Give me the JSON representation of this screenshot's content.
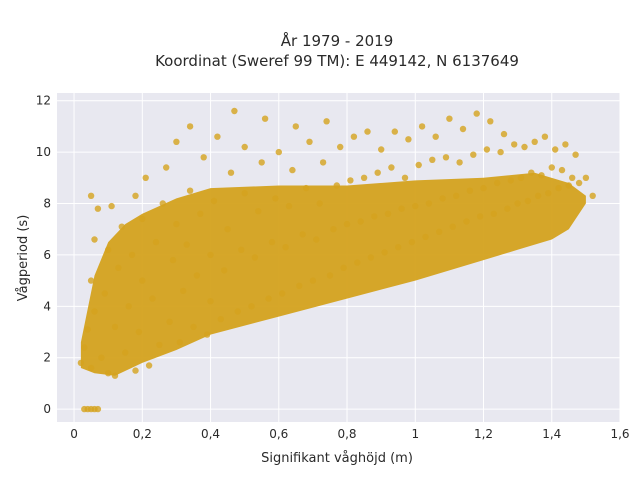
{
  "chart_data": {
    "type": "scatter",
    "title_line1": "År 1979 - 2019",
    "title_line2": "Koordinat (Sweref 99 TM): E 449142, N 6137649",
    "xlabel": "Signifikant våghöjd (m)",
    "ylabel": "Vågperiod (s)",
    "xlim": [
      -0.05,
      1.6
    ],
    "ylim": [
      -0.5,
      12.3
    ],
    "xticks": [
      0,
      0.2,
      0.4,
      0.6,
      0.8,
      1,
      1.2,
      1.4,
      1.6
    ],
    "xtick_labels": [
      "0",
      "0,2",
      "0,4",
      "0,6",
      "0,8",
      "1",
      "1,2",
      "1,4",
      "1,6"
    ],
    "yticks": [
      0,
      2,
      4,
      6,
      8,
      10,
      12
    ],
    "ytick_labels": [
      "0",
      "2",
      "4",
      "6",
      "8",
      "10",
      "12"
    ],
    "grid": true,
    "colors": {
      "marker": "#d4a21e",
      "plot_bg": "#e8e8f0",
      "grid": "#ffffff"
    },
    "series": [
      {
        "values_description_x_y_pairs": true,
        "points": [
          [
            0.03,
            0
          ],
          [
            0.04,
            0
          ],
          [
            0.05,
            0
          ],
          [
            0.06,
            0
          ],
          [
            0.07,
            0
          ],
          [
            0.02,
            1.8
          ],
          [
            0.03,
            2.4
          ],
          [
            0.04,
            3.1
          ],
          [
            0.05,
            1.6
          ],
          [
            0.06,
            3.8
          ],
          [
            0.05,
            5.0
          ],
          [
            0.06,
            6.6
          ],
          [
            0.07,
            7.8
          ],
          [
            0.05,
            8.3
          ],
          [
            0.08,
            2.0
          ],
          [
            0.09,
            4.5
          ],
          [
            0.1,
            1.4
          ],
          [
            0.1,
            6.2
          ],
          [
            0.11,
            7.9
          ],
          [
            0.12,
            1.3
          ],
          [
            0.12,
            3.2
          ],
          [
            0.13,
            5.5
          ],
          [
            0.14,
            7.1
          ],
          [
            0.15,
            2.2
          ],
          [
            0.16,
            4.0
          ],
          [
            0.17,
            6.0
          ],
          [
            0.18,
            1.5
          ],
          [
            0.18,
            8.3
          ],
          [
            0.19,
            3.0
          ],
          [
            0.2,
            5.0
          ],
          [
            0.2,
            7.4
          ],
          [
            0.21,
            9.0
          ],
          [
            0.22,
            1.7
          ],
          [
            0.23,
            4.3
          ],
          [
            0.24,
            6.5
          ],
          [
            0.25,
            2.5
          ],
          [
            0.26,
            8.0
          ],
          [
            0.27,
            9.4
          ],
          [
            0.28,
            3.4
          ],
          [
            0.29,
            5.8
          ],
          [
            0.3,
            7.2
          ],
          [
            0.3,
            10.4
          ],
          [
            0.31,
            2.6
          ],
          [
            0.32,
            4.6
          ],
          [
            0.33,
            6.4
          ],
          [
            0.34,
            8.5
          ],
          [
            0.34,
            11.0
          ],
          [
            0.35,
            3.2
          ],
          [
            0.36,
            5.2
          ],
          [
            0.37,
            7.6
          ],
          [
            0.38,
            9.8
          ],
          [
            0.39,
            2.9
          ],
          [
            0.4,
            4.2
          ],
          [
            0.4,
            6.0
          ],
          [
            0.41,
            8.1
          ],
          [
            0.42,
            10.6
          ],
          [
            0.43,
            3.5
          ],
          [
            0.44,
            5.4
          ],
          [
            0.45,
            7.0
          ],
          [
            0.46,
            9.2
          ],
          [
            0.47,
            11.6
          ],
          [
            0.48,
            3.8
          ],
          [
            0.49,
            6.2
          ],
          [
            0.5,
            8.4
          ],
          [
            0.5,
            10.2
          ],
          [
            0.52,
            4.0
          ],
          [
            0.53,
            5.9
          ],
          [
            0.54,
            7.7
          ],
          [
            0.55,
            9.6
          ],
          [
            0.56,
            11.3
          ],
          [
            0.57,
            4.3
          ],
          [
            0.58,
            6.5
          ],
          [
            0.59,
            8.2
          ],
          [
            0.6,
            10.0
          ],
          [
            0.61,
            4.5
          ],
          [
            0.62,
            6.3
          ],
          [
            0.63,
            7.9
          ],
          [
            0.64,
            9.3
          ],
          [
            0.65,
            11.0
          ],
          [
            0.66,
            4.8
          ],
          [
            0.67,
            6.8
          ],
          [
            0.68,
            8.6
          ],
          [
            0.69,
            10.4
          ],
          [
            0.7,
            5.0
          ],
          [
            0.71,
            6.6
          ],
          [
            0.72,
            8.0
          ],
          [
            0.73,
            9.6
          ],
          [
            0.74,
            11.2
          ],
          [
            0.75,
            5.2
          ],
          [
            0.76,
            7.0
          ],
          [
            0.77,
            8.7
          ],
          [
            0.78,
            10.2
          ],
          [
            0.79,
            5.5
          ],
          [
            0.8,
            7.2
          ],
          [
            0.81,
            8.9
          ],
          [
            0.82,
            10.6
          ],
          [
            0.83,
            5.7
          ],
          [
            0.84,
            7.3
          ],
          [
            0.85,
            9.0
          ],
          [
            0.86,
            10.8
          ],
          [
            0.87,
            5.9
          ],
          [
            0.88,
            7.5
          ],
          [
            0.89,
            9.2
          ],
          [
            0.9,
            10.1
          ],
          [
            0.91,
            6.1
          ],
          [
            0.92,
            7.6
          ],
          [
            0.93,
            9.4
          ],
          [
            0.94,
            10.8
          ],
          [
            0.95,
            6.3
          ],
          [
            0.96,
            7.8
          ],
          [
            0.97,
            9.0
          ],
          [
            0.98,
            10.5
          ],
          [
            0.99,
            6.5
          ],
          [
            1.0,
            7.9
          ],
          [
            1.01,
            9.5
          ],
          [
            1.02,
            11.0
          ],
          [
            1.03,
            6.7
          ],
          [
            1.04,
            8.0
          ],
          [
            1.05,
            9.7
          ],
          [
            1.06,
            10.6
          ],
          [
            1.07,
            6.9
          ],
          [
            1.08,
            8.2
          ],
          [
            1.09,
            9.8
          ],
          [
            1.1,
            11.3
          ],
          [
            1.11,
            7.1
          ],
          [
            1.12,
            8.3
          ],
          [
            1.13,
            9.6
          ],
          [
            1.14,
            10.9
          ],
          [
            1.15,
            7.3
          ],
          [
            1.16,
            8.5
          ],
          [
            1.17,
            9.9
          ],
          [
            1.18,
            11.5
          ],
          [
            1.19,
            7.5
          ],
          [
            1.2,
            8.6
          ],
          [
            1.21,
            10.1
          ],
          [
            1.22,
            11.2
          ],
          [
            1.23,
            7.6
          ],
          [
            1.24,
            8.8
          ],
          [
            1.25,
            10.0
          ],
          [
            1.26,
            10.7
          ],
          [
            1.27,
            7.8
          ],
          [
            1.28,
            8.9
          ],
          [
            1.29,
            10.3
          ],
          [
            1.3,
            8.0
          ],
          [
            1.31,
            9.0
          ],
          [
            1.32,
            10.2
          ],
          [
            1.33,
            8.1
          ],
          [
            1.34,
            9.2
          ],
          [
            1.35,
            10.4
          ],
          [
            1.36,
            8.3
          ],
          [
            1.37,
            9.1
          ],
          [
            1.38,
            10.6
          ],
          [
            1.39,
            8.4
          ],
          [
            1.4,
            9.4
          ],
          [
            1.41,
            10.1
          ],
          [
            1.42,
            8.6
          ],
          [
            1.43,
            9.3
          ],
          [
            1.44,
            10.3
          ],
          [
            1.45,
            8.7
          ],
          [
            1.46,
            9.0
          ],
          [
            1.47,
            9.9
          ],
          [
            1.48,
            8.8
          ],
          [
            1.5,
            9.0
          ],
          [
            1.52,
            8.3
          ]
        ]
      }
    ]
  }
}
